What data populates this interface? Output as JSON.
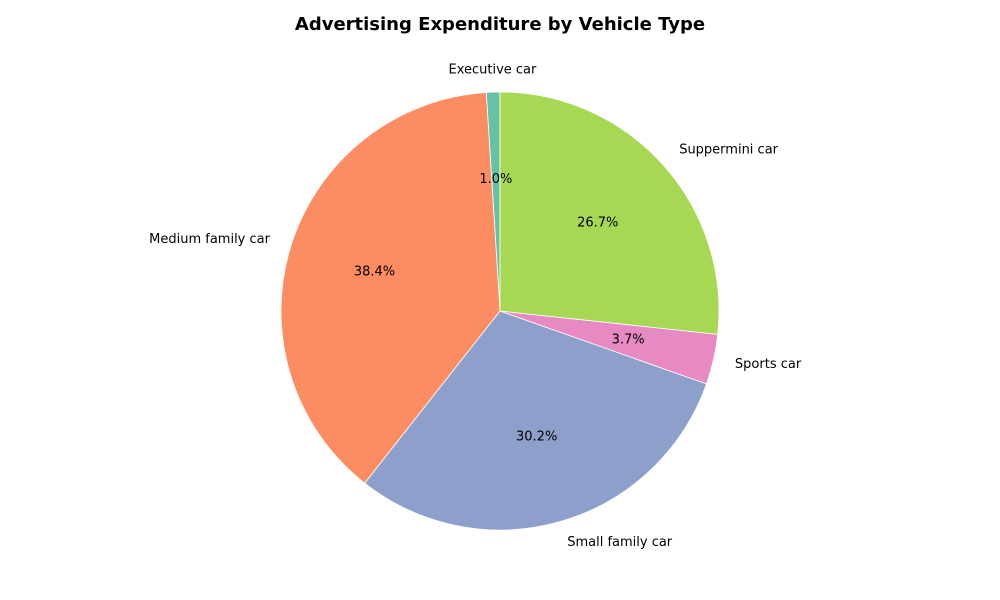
{
  "chart_data": {
    "type": "pie",
    "title": "Advertising Expenditure by Vehicle Type",
    "start_angle_deg": 90,
    "direction": "counterclockwise",
    "slices": [
      {
        "label": "Executive car",
        "percent": 1.0,
        "pct_label": "1.0%",
        "color": "#66c2a5"
      },
      {
        "label": "Medium family car",
        "percent": 38.4,
        "pct_label": "38.4%",
        "color": "#fc8d62"
      },
      {
        "label": "Small family car",
        "percent": 30.2,
        "pct_label": "30.2%",
        "color": "#8da0cb"
      },
      {
        "label": "Sports car",
        "percent": 3.7,
        "pct_label": "3.7%",
        "color": "#e78ac3"
      },
      {
        "label": "Suppermini car",
        "percent": 26.7,
        "pct_label": "26.7%",
        "color": "#a6d854"
      }
    ]
  }
}
